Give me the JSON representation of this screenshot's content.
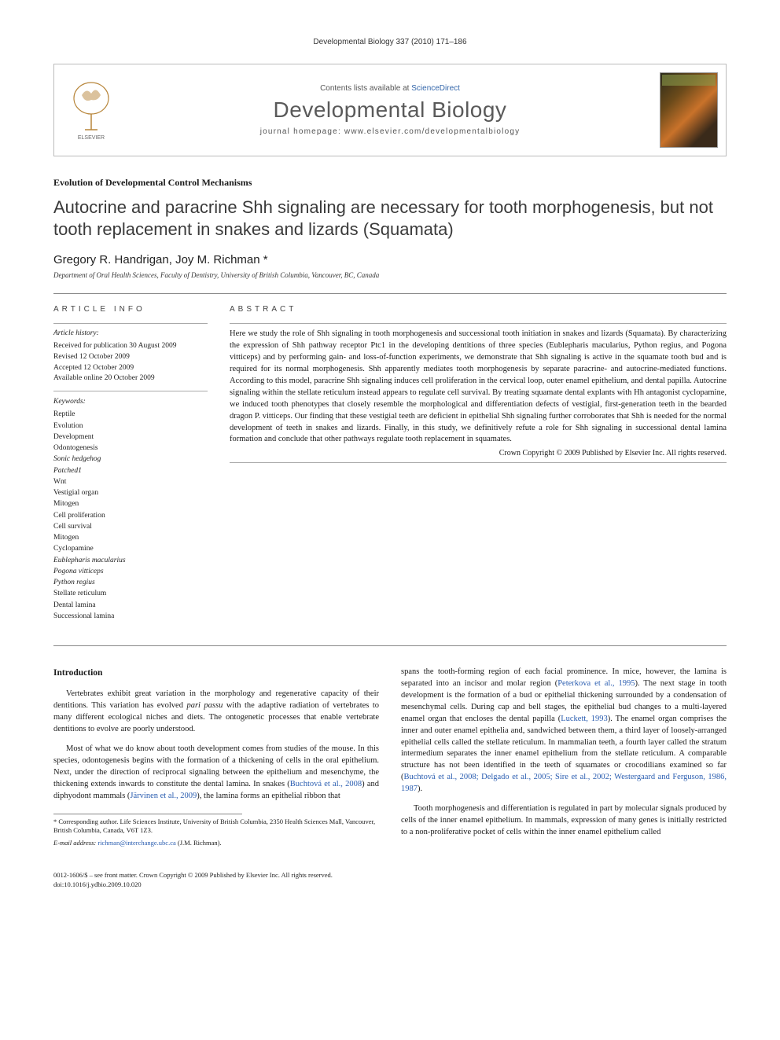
{
  "running_head": "Developmental Biology 337 (2010) 171–186",
  "masthead": {
    "contents_prefix": "Contents lists available at ",
    "contents_link": "ScienceDirect",
    "journal_name": "Developmental Biology",
    "homepage_prefix": "journal homepage: ",
    "homepage_url": "www.elsevier.com/developmentalbiology",
    "publisher_logo_alt": "Elsevier",
    "cover_label": "DEVELOPMENTAL BIOLOGY"
  },
  "article": {
    "section": "Evolution of Developmental Control Mechanisms",
    "title": "Autocrine and paracrine Shh signaling are necessary for tooth morphogenesis, but not tooth replacement in snakes and lizards (Squamata)",
    "authors": "Gregory R. Handrigan, Joy M. Richman *",
    "affiliation": "Department of Oral Health Sciences, Faculty of Dentistry, University of British Columbia, Vancouver, BC, Canada"
  },
  "info": {
    "heading": "ARTICLE INFO",
    "history_label": "Article history:",
    "history": [
      "Received for publication 30 August 2009",
      "Revised 12 October 2009",
      "Accepted 12 October 2009",
      "Available online 20 October 2009"
    ],
    "keywords_label": "Keywords:",
    "keywords": [
      "Reptile",
      "Evolution",
      "Development",
      "Odontogenesis",
      "Sonic hedgehog",
      "Patched1",
      "Wnt",
      "Vestigial organ",
      "Mitogen",
      "Cell proliferation",
      "Cell survival",
      "Mitogen",
      "Cyclopamine",
      "Eublepharis macularius",
      "Pogona vitticeps",
      "Python regius",
      "Stellate reticulum",
      "Dental lamina",
      "Successional lamina"
    ],
    "italic_keywords": [
      "Sonic hedgehog",
      "Patched1",
      "Eublepharis macularius",
      "Pogona vitticeps",
      "Python regius"
    ]
  },
  "abstract": {
    "heading": "ABSTRACT",
    "text": "Here we study the role of Shh signaling in tooth morphogenesis and successional tooth initiation in snakes and lizards (Squamata). By characterizing the expression of Shh pathway receptor Ptc1 in the developing dentitions of three species (Eublepharis macularius, Python regius, and Pogona vitticeps) and by performing gain- and loss-of-function experiments, we demonstrate that Shh signaling is active in the squamate tooth bud and is required for its normal morphogenesis. Shh apparently mediates tooth morphogenesis by separate paracrine- and autocrine-mediated functions. According to this model, paracrine Shh signaling induces cell proliferation in the cervical loop, outer enamel epithelium, and dental papilla. Autocrine signaling within the stellate reticulum instead appears to regulate cell survival. By treating squamate dental explants with Hh antagonist cyclopamine, we induced tooth phenotypes that closely resemble the morphological and differentiation defects of vestigial, first-generation teeth in the bearded dragon P. vitticeps. Our finding that these vestigial teeth are deficient in epithelial Shh signaling further corroborates that Shh is needed for the normal development of teeth in snakes and lizards. Finally, in this study, we definitively refute a role for Shh signaling in successional dental lamina formation and conclude that other pathways regulate tooth replacement in squamates.",
    "copyright": "Crown Copyright © 2009 Published by Elsevier Inc. All rights reserved."
  },
  "body": {
    "intro_heading": "Introduction",
    "p1": "Vertebrates exhibit great variation in the morphology and regenerative capacity of their dentitions. This variation has evolved pari passu with the adaptive radiation of vertebrates to many different ecological niches and diets. The ontogenetic processes that enable vertebrate dentitions to evolve are poorly understood.",
    "p2a": "Most of what we do know about tooth development comes from studies of the mouse. In this species, odontogenesis begins with the formation of a thickening of cells in the oral epithelium. Next, under the direction of reciprocal signaling between the epithelium and mesenchyme, the thickening extends inwards to constitute the dental lamina. In snakes (",
    "p2_ref1": "Buchtová et al., 2008",
    "p2b": ") and diphyodont mammals (",
    "p2_ref2": "Järvinen et al., 2009",
    "p2c": "), the lamina forms an epithelial ribbon that",
    "p3a": "spans the tooth-forming region of each facial prominence. In mice, however, the lamina is separated into an incisor and molar region (",
    "p3_ref1": "Peterkova et al., 1995",
    "p3b": "). The next stage in tooth development is the formation of a bud or epithelial thickening surrounded by a condensation of mesenchymal cells. During cap and bell stages, the epithelial bud changes to a multi-layered enamel organ that encloses the dental papilla (",
    "p3_ref2": "Luckett, 1993",
    "p3c": "). The enamel organ comprises the inner and outer enamel epithelia and, sandwiched between them, a third layer of loosely-arranged epithelial cells called the stellate reticulum. In mammalian teeth, a fourth layer called the stratum intermedium separates the inner enamel epithelium from the stellate reticulum. A comparable structure has not been identified in the teeth of squamates or crocodilians examined so far (",
    "p3_ref3": "Buchtová et al., 2008; Delgado et al., 2005; Sire et al., 2002; Westergaard and Ferguson, 1986, 1987",
    "p3d": ").",
    "p4": "Tooth morphogenesis and differentiation is regulated in part by molecular signals produced by cells of the inner enamel epithelium. In mammals, expression of many genes is initially restricted to a non-proliferative pocket of cells within the inner enamel epithelium called"
  },
  "footnotes": {
    "corr": "* Corresponding author. Life Sciences Institute, University of British Columbia, 2350 Health Sciences Mall, Vancouver, British Columbia, Canada, V6T 1Z3.",
    "email_label": "E-mail address: ",
    "email": "richman@interchange.ubc.ca",
    "email_suffix": " (J.M. Richman)."
  },
  "footer": {
    "line1": "0012-1606/$ – see front matter. Crown Copyright © 2009 Published by Elsevier Inc. All rights reserved.",
    "line2": "doi:10.1016/j.ydbio.2009.10.020"
  },
  "colors": {
    "link": "#2a5db0",
    "rule": "#888888",
    "heading_gray": "#444444",
    "title_gray": "#3a3a3a"
  },
  "typography": {
    "body_pt": 10.5,
    "title_pt": 22,
    "journal_name_pt": 28,
    "footnote_pt": 8.5
  }
}
